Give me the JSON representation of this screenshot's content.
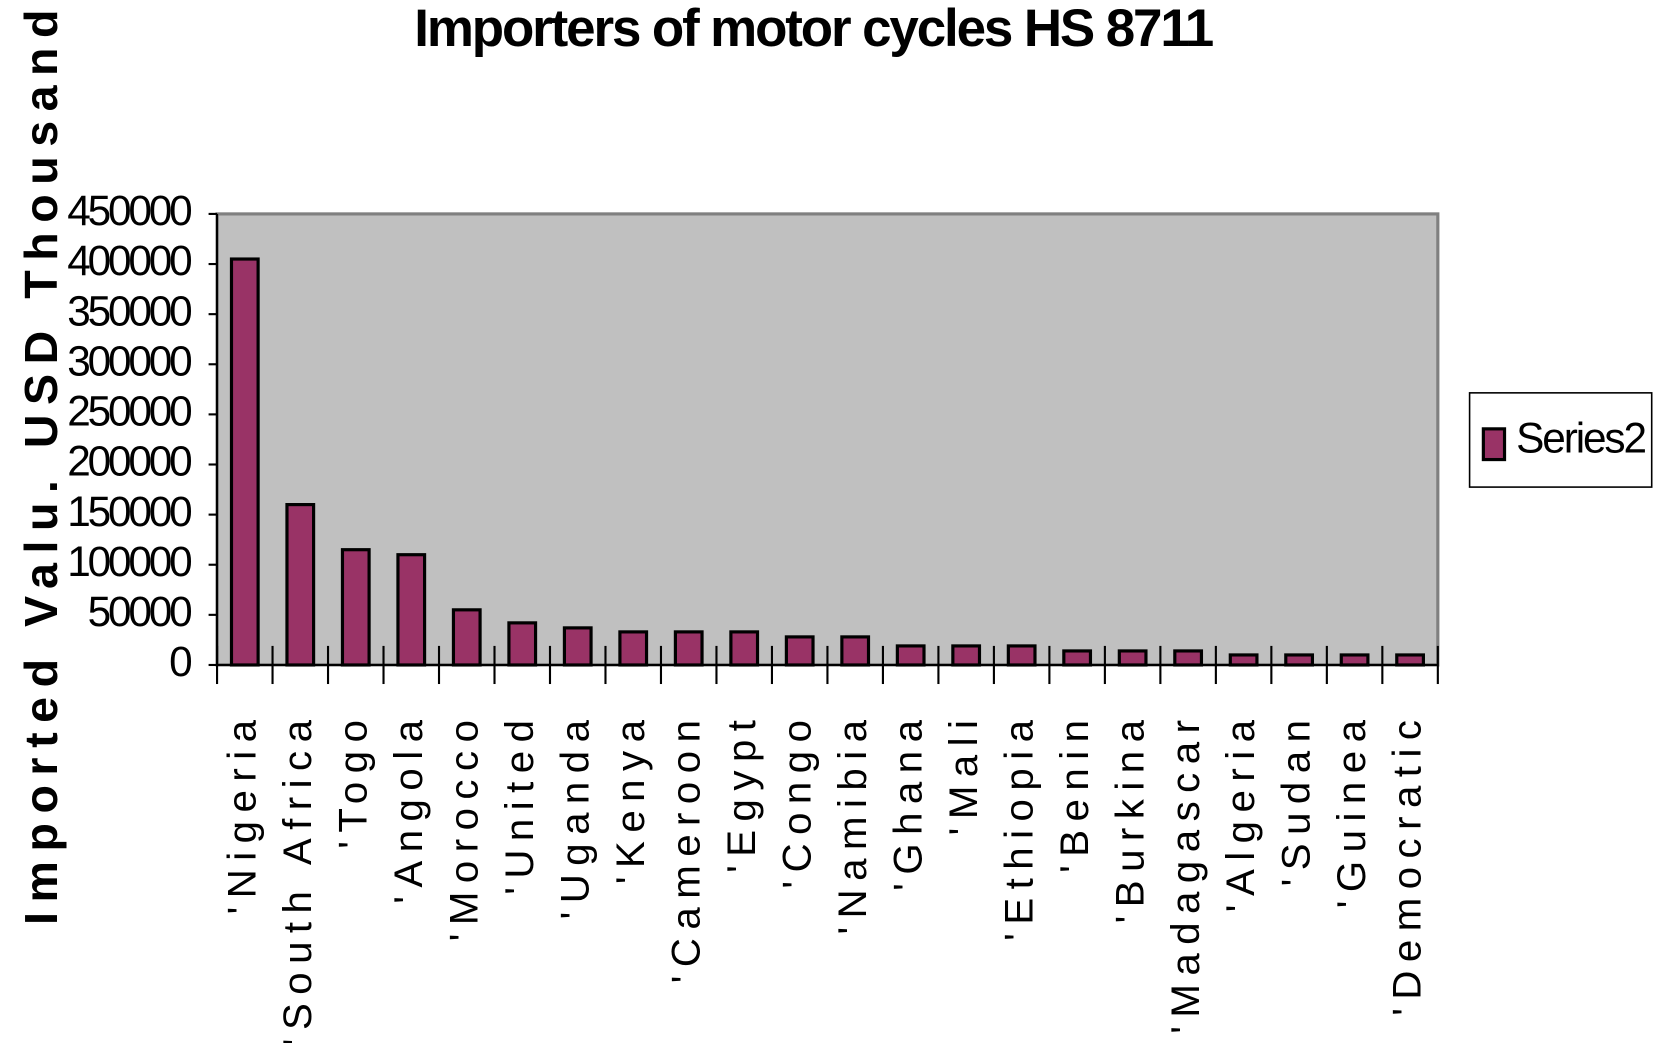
{
  "chart_data": {
    "type": "bar",
    "title": "Importers of motor cycles HS 8711",
    "y_label": "Imported Valu. USD Thousands",
    "categories": [
      "'Nigeria",
      "'South Africa",
      "'Togo",
      "'Angola",
      "'Morocco",
      "'United",
      "'Uganda",
      "'Kenya",
      "'Cameroon",
      "'Egypt",
      "'Congo",
      "'Namibia",
      "'Ghana",
      "'Mali",
      "'Ethiopia",
      "'Benin",
      "'Burkina",
      "'Madagascar",
      "'Algeria",
      "'Sudan",
      "'Guinea",
      "'Democratic"
    ],
    "series": [
      {
        "name": "Series2",
        "color": "#993366",
        "values": [
          405000,
          160000,
          115000,
          110000,
          55000,
          42000,
          37000,
          33000,
          33000,
          33000,
          28000,
          28000,
          19000,
          19000,
          19000,
          14000,
          14000,
          14000,
          10000,
          10000,
          10000,
          10000
        ]
      }
    ],
    "ylim": [
      0,
      450000
    ],
    "yticks": [
      0,
      50000,
      100000,
      150000,
      200000,
      250000,
      300000,
      350000,
      400000,
      450000
    ],
    "plot_background": "#c0c0c0",
    "legend": "right"
  }
}
